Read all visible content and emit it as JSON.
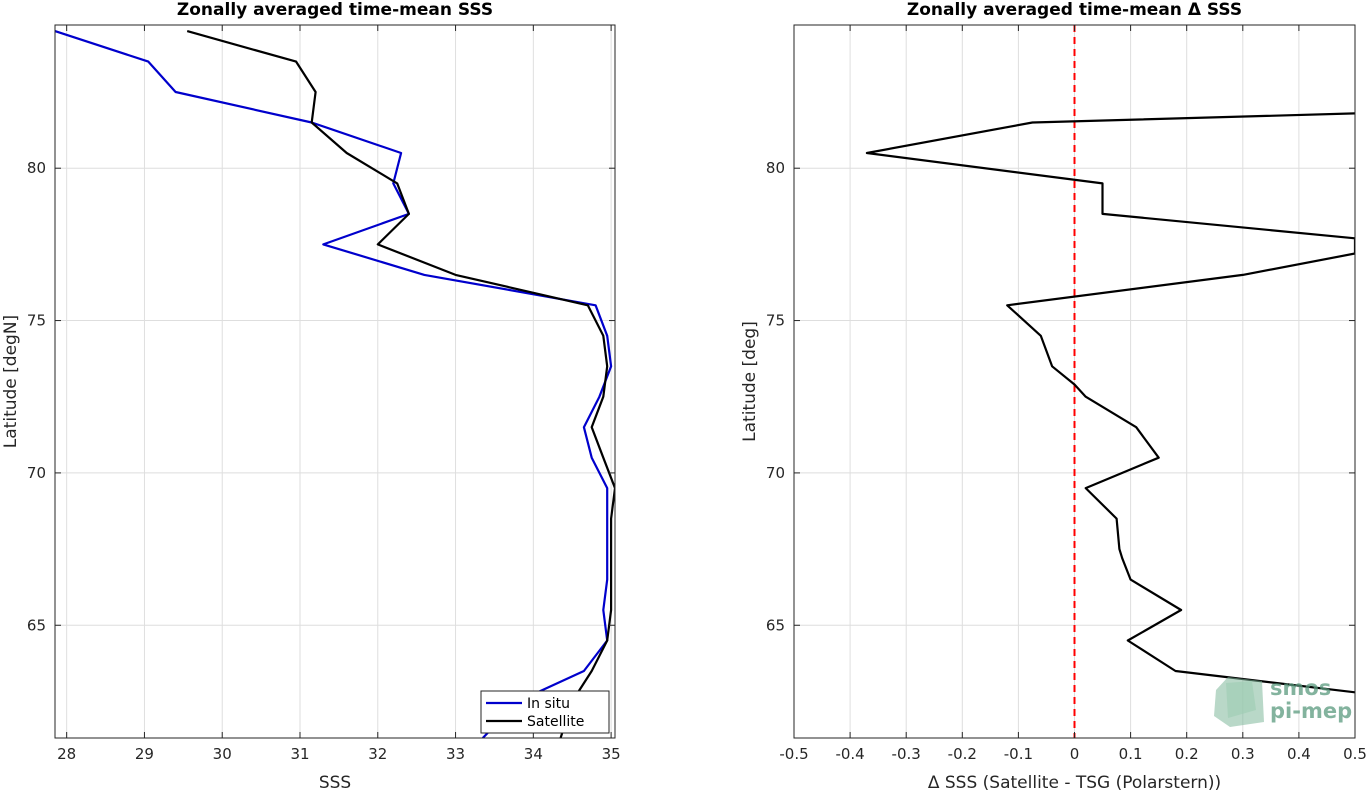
{
  "chart_data": [
    {
      "type": "line",
      "title": "Zonally averaged time-mean SSS",
      "xlabel": "SSS",
      "ylabel": "Latitude [degN]",
      "xlim": [
        27.85,
        35.05
      ],
      "ylim": [
        61.3,
        84.7
      ],
      "xticks": [
        28,
        29,
        30,
        31,
        32,
        33,
        34,
        35
      ],
      "yticks": [
        65,
        70,
        75,
        80
      ],
      "grid": true,
      "legend": {
        "position": "bottom-right",
        "entries": [
          "In situ",
          "Satellite"
        ]
      },
      "series": [
        {
          "name": "In situ",
          "color": "#0000cc",
          "points": [
            [
              27.85,
              84.5
            ],
            [
              29.05,
              83.5
            ],
            [
              29.4,
              82.5
            ],
            [
              31.15,
              81.5
            ],
            [
              32.3,
              80.5
            ],
            [
              32.2,
              79.5
            ],
            [
              32.4,
              78.5
            ],
            [
              31.3,
              77.5
            ],
            [
              32.6,
              76.5
            ],
            [
              34.8,
              75.5
            ],
            [
              34.95,
              74.5
            ],
            [
              35.0,
              73.5
            ],
            [
              34.85,
              72.5
            ],
            [
              34.65,
              71.5
            ],
            [
              34.75,
              70.5
            ],
            [
              34.95,
              69.5
            ],
            [
              34.95,
              68.5
            ],
            [
              34.95,
              67.5
            ],
            [
              34.95,
              66.5
            ],
            [
              34.9,
              65.5
            ],
            [
              34.95,
              64.5
            ],
            [
              34.65,
              63.5
            ],
            [
              33.8,
              62.5
            ],
            [
              33.35,
              61.3
            ]
          ]
        },
        {
          "name": "Satellite",
          "color": "#000000",
          "points": [
            [
              29.55,
              84.5
            ],
            [
              30.95,
              83.5
            ],
            [
              31.2,
              82.5
            ],
            [
              31.15,
              81.5
            ],
            [
              31.6,
              80.5
            ],
            [
              32.25,
              79.5
            ],
            [
              32.4,
              78.5
            ],
            [
              32.0,
              77.5
            ],
            [
              33.0,
              76.5
            ],
            [
              34.7,
              75.5
            ],
            [
              34.9,
              74.5
            ],
            [
              34.95,
              73.5
            ],
            [
              34.9,
              72.5
            ],
            [
              34.75,
              71.5
            ],
            [
              34.9,
              70.5
            ],
            [
              35.05,
              69.5
            ],
            [
              35.0,
              68.5
            ],
            [
              35.0,
              67.5
            ],
            [
              35.0,
              66.5
            ],
            [
              35.0,
              65.5
            ],
            [
              34.95,
              64.5
            ],
            [
              34.75,
              63.5
            ],
            [
              34.5,
              62.5
            ],
            [
              34.35,
              61.3
            ]
          ]
        }
      ]
    },
    {
      "type": "line",
      "title": "Zonally averaged time-mean Δ SSS",
      "xlabel": "Δ SSS (Satellite - TSG (Polarstern))",
      "ylabel": "Latitude [deg]",
      "xlim": [
        -0.5,
        0.5
      ],
      "ylim": [
        61.3,
        84.7
      ],
      "xticks": [
        -0.5,
        -0.4,
        -0.3,
        -0.2,
        -0.1,
        0,
        0.1,
        0.2,
        0.3,
        0.4,
        0.5
      ],
      "yticks": [
        65,
        70,
        75,
        80
      ],
      "grid": true,
      "reference_line": {
        "x": 0,
        "color": "#ff0000",
        "style": "dashed"
      },
      "series": [
        {
          "name": "",
          "color": "#000000",
          "points": [
            [
              0.5,
              81.8
            ],
            [
              -0.075,
              81.5
            ],
            [
              -0.37,
              80.5
            ],
            [
              0.05,
              79.5
            ],
            [
              0.05,
              78.5
            ],
            [
              0.5,
              77.7
            ],
            [
              0.5,
              77.2
            ],
            [
              0.3,
              76.5
            ],
            [
              -0.12,
              75.5
            ],
            [
              -0.06,
              74.5
            ],
            [
              -0.04,
              73.5
            ],
            [
              0.0,
              72.9
            ],
            [
              0.02,
              72.5
            ],
            [
              0.11,
              71.5
            ],
            [
              0.15,
              70.5
            ],
            [
              0.02,
              69.5
            ],
            [
              0.075,
              68.5
            ],
            [
              0.08,
              67.5
            ],
            [
              0.085,
              67.2
            ],
            [
              0.1,
              66.5
            ],
            [
              0.19,
              65.5
            ],
            [
              0.095,
              64.5
            ],
            [
              0.18,
              63.5
            ],
            [
              0.5,
              62.8
            ]
          ]
        }
      ]
    }
  ],
  "logo": {
    "line1": "smos",
    "line2": "pi-mep"
  }
}
